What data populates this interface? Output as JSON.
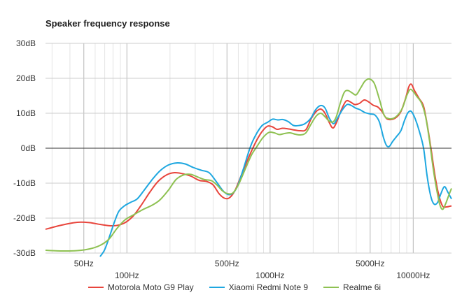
{
  "chart_data": {
    "type": "line",
    "title": "Speaker frequency response",
    "xlabel": "",
    "ylabel": "",
    "x_scale": "log",
    "xlim": [
      27,
      18500
    ],
    "ylim": [
      -30,
      30
    ],
    "grid": true,
    "legend_position": "bottom",
    "y_ticks": [
      {
        "value": 30,
        "label": "30dB"
      },
      {
        "value": 20,
        "label": "20dB"
      },
      {
        "value": 10,
        "label": "10dB"
      },
      {
        "value": 0,
        "label": "0dB"
      },
      {
        "value": -10,
        "label": "-10dB"
      },
      {
        "value": -20,
        "label": "-20dB"
      },
      {
        "value": -30,
        "label": "-30dB"
      }
    ],
    "x_ticks": [
      {
        "value": 50,
        "label": "50Hz",
        "row": 1
      },
      {
        "value": 100,
        "label": "100Hz",
        "row": 2
      },
      {
        "value": 500,
        "label": "500Hz",
        "row": 1
      },
      {
        "value": 1000,
        "label": "1000Hz",
        "row": 2
      },
      {
        "value": 5000,
        "label": "5000Hz",
        "row": 1
      },
      {
        "value": 10000,
        "label": "10000Hz",
        "row": 2
      }
    ],
    "series": [
      {
        "name": "Motorola Moto G9 Play",
        "color": "#e8453c",
        "points": [
          [
            27,
            -23.2
          ],
          [
            35,
            -22
          ],
          [
            45,
            -21.2
          ],
          [
            55,
            -21.3
          ],
          [
            65,
            -21.8
          ],
          [
            80,
            -22.2
          ],
          [
            95,
            -21.5
          ],
          [
            110,
            -19.5
          ],
          [
            125,
            -16.5
          ],
          [
            145,
            -12.5
          ],
          [
            165,
            -9.5
          ],
          [
            190,
            -7.6
          ],
          [
            215,
            -7.0
          ],
          [
            245,
            -7.3
          ],
          [
            280,
            -8
          ],
          [
            320,
            -9.2
          ],
          [
            360,
            -9.5
          ],
          [
            400,
            -10.5
          ],
          [
            440,
            -13
          ],
          [
            480,
            -14.3
          ],
          [
            520,
            -14.2
          ],
          [
            570,
            -12
          ],
          [
            640,
            -7
          ],
          [
            720,
            -2
          ],
          [
            800,
            2
          ],
          [
            880,
            4.8
          ],
          [
            960,
            6.3
          ],
          [
            1040,
            6.1
          ],
          [
            1120,
            5.4
          ],
          [
            1220,
            5.7
          ],
          [
            1350,
            5.5
          ],
          [
            1480,
            5.2
          ],
          [
            1620,
            5
          ],
          [
            1780,
            5.3
          ],
          [
            1940,
            8.5
          ],
          [
            2100,
            10.5
          ],
          [
            2260,
            11.2
          ],
          [
            2420,
            10
          ],
          [
            2580,
            7.5
          ],
          [
            2740,
            5.8
          ],
          [
            2900,
            7.2
          ],
          [
            3150,
            11
          ],
          [
            3400,
            13.5
          ],
          [
            3650,
            13.2
          ],
          [
            3900,
            12.5
          ],
          [
            4200,
            12.8
          ],
          [
            4550,
            13.8
          ],
          [
            4900,
            13.2
          ],
          [
            5250,
            12.3
          ],
          [
            5650,
            11.8
          ],
          [
            6050,
            10.5
          ],
          [
            6500,
            8.5
          ],
          [
            7000,
            8.2
          ],
          [
            7600,
            8.8
          ],
          [
            8200,
            10.5
          ],
          [
            8800,
            14
          ],
          [
            9300,
            17.5
          ],
          [
            9700,
            18.3
          ],
          [
            10200,
            16.5
          ],
          [
            11000,
            14.2
          ],
          [
            11800,
            12
          ],
          [
            12600,
            6
          ],
          [
            13400,
            -1
          ],
          [
            14200,
            -8
          ],
          [
            15000,
            -13
          ],
          [
            16000,
            -16.5
          ],
          [
            17000,
            -16.8
          ],
          [
            18500,
            -16.5
          ]
        ]
      },
      {
        "name": "Xiaomi Redmi Note 9",
        "color": "#1ea7e0",
        "points": [
          [
            65,
            -31
          ],
          [
            70,
            -29
          ],
          [
            76,
            -25
          ],
          [
            82,
            -21
          ],
          [
            88,
            -18
          ],
          [
            96,
            -16.5
          ],
          [
            106,
            -15.5
          ],
          [
            118,
            -14.5
          ],
          [
            132,
            -12
          ],
          [
            150,
            -9
          ],
          [
            170,
            -6.5
          ],
          [
            195,
            -4.8
          ],
          [
            225,
            -4.2
          ],
          [
            255,
            -4.5
          ],
          [
            290,
            -5.5
          ],
          [
            330,
            -6.3
          ],
          [
            375,
            -7
          ],
          [
            420,
            -9.5
          ],
          [
            465,
            -12
          ],
          [
            505,
            -13.2
          ],
          [
            545,
            -13
          ],
          [
            590,
            -11
          ],
          [
            650,
            -6
          ],
          [
            730,
            0.5
          ],
          [
            800,
            4
          ],
          [
            880,
            6.5
          ],
          [
            960,
            7.4
          ],
          [
            1040,
            8.3
          ],
          [
            1130,
            8.1
          ],
          [
            1230,
            8.2
          ],
          [
            1340,
            7.6
          ],
          [
            1460,
            6.5
          ],
          [
            1600,
            6.5
          ],
          [
            1750,
            7
          ],
          [
            1920,
            8.5
          ],
          [
            2080,
            11
          ],
          [
            2250,
            12.2
          ],
          [
            2420,
            11.5
          ],
          [
            2600,
            8.5
          ],
          [
            2780,
            7
          ],
          [
            2950,
            8.5
          ],
          [
            3200,
            11
          ],
          [
            3450,
            12.5
          ],
          [
            3700,
            12.2
          ],
          [
            3950,
            11.5
          ],
          [
            4250,
            11
          ],
          [
            4600,
            10.2
          ],
          [
            5000,
            9.8
          ],
          [
            5400,
            9.5
          ],
          [
            5800,
            7.5
          ],
          [
            6200,
            3
          ],
          [
            6500,
            0.8
          ],
          [
            6800,
            0.5
          ],
          [
            7200,
            2
          ],
          [
            7700,
            3.5
          ],
          [
            8200,
            5
          ],
          [
            8700,
            8
          ],
          [
            9200,
            10.2
          ],
          [
            9700,
            10.5
          ],
          [
            10300,
            8.5
          ],
          [
            11000,
            5
          ],
          [
            11800,
            0
          ],
          [
            12500,
            -8
          ],
          [
            13300,
            -14
          ],
          [
            14000,
            -16
          ],
          [
            14800,
            -15.5
          ],
          [
            15600,
            -13
          ],
          [
            16500,
            -11
          ],
          [
            17400,
            -12.5
          ],
          [
            18500,
            -14.5
          ]
        ]
      },
      {
        "name": "Realme 6i",
        "color": "#8ec152",
        "points": [
          [
            27,
            -29.2
          ],
          [
            35,
            -29.4
          ],
          [
            45,
            -29.3
          ],
          [
            55,
            -28.8
          ],
          [
            65,
            -27.8
          ],
          [
            75,
            -26
          ],
          [
            85,
            -23
          ],
          [
            97,
            -20.5
          ],
          [
            112,
            -19
          ],
          [
            130,
            -17.5
          ],
          [
            150,
            -16.3
          ],
          [
            170,
            -14.8
          ],
          [
            195,
            -12
          ],
          [
            220,
            -9
          ],
          [
            250,
            -7.6
          ],
          [
            280,
            -7.5
          ],
          [
            315,
            -8.3
          ],
          [
            350,
            -9
          ],
          [
            390,
            -9.3
          ],
          [
            425,
            -10.5
          ],
          [
            465,
            -12.2
          ],
          [
            505,
            -13
          ],
          [
            550,
            -12.8
          ],
          [
            600,
            -10.5
          ],
          [
            670,
            -6
          ],
          [
            740,
            -2
          ],
          [
            810,
            0.5
          ],
          [
            890,
            3
          ],
          [
            980,
            4.5
          ],
          [
            1070,
            4.4
          ],
          [
            1160,
            3.9
          ],
          [
            1260,
            4.2
          ],
          [
            1380,
            4.4
          ],
          [
            1500,
            4
          ],
          [
            1630,
            3.8
          ],
          [
            1780,
            4.4
          ],
          [
            1940,
            7
          ],
          [
            2100,
            9.2
          ],
          [
            2260,
            10
          ],
          [
            2420,
            9
          ],
          [
            2580,
            7.8
          ],
          [
            2750,
            7.5
          ],
          [
            2900,
            9
          ],
          [
            3100,
            13
          ],
          [
            3300,
            16
          ],
          [
            3500,
            16.5
          ],
          [
            3750,
            15.8
          ],
          [
            4000,
            15.3
          ],
          [
            4300,
            17.3
          ],
          [
            4600,
            19.2
          ],
          [
            4950,
            19.8
          ],
          [
            5350,
            18.5
          ],
          [
            5800,
            14
          ],
          [
            6250,
            9.5
          ],
          [
            6700,
            8.5
          ],
          [
            7200,
            8.5
          ],
          [
            7800,
            9.5
          ],
          [
            8400,
            11.5
          ],
          [
            9000,
            15
          ],
          [
            9500,
            16.8
          ],
          [
            10000,
            16.2
          ],
          [
            10600,
            14.8
          ],
          [
            11400,
            13
          ],
          [
            12200,
            9
          ],
          [
            13000,
            2
          ],
          [
            13800,
            -6
          ],
          [
            14600,
            -12
          ],
          [
            15300,
            -16
          ],
          [
            16000,
            -17.5
          ],
          [
            16800,
            -16
          ],
          [
            17700,
            -13.5
          ],
          [
            18500,
            -11.5
          ]
        ]
      }
    ]
  }
}
